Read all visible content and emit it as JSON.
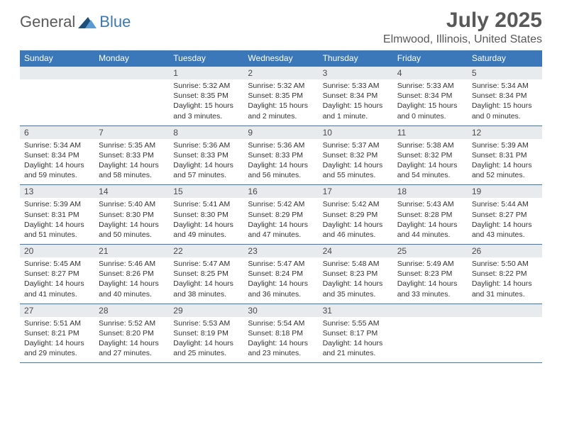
{
  "logo": {
    "part1": "General",
    "part2": "Blue"
  },
  "title": "July 2025",
  "location": "Elmwood, Illinois, United States",
  "colors": {
    "header_bg": "#3a78b9",
    "header_text": "#ffffff",
    "daynum_bg": "#e8ebee",
    "border": "#3a78b9",
    "text": "#333333",
    "title_text": "#595959"
  },
  "weekdays": [
    "Sunday",
    "Monday",
    "Tuesday",
    "Wednesday",
    "Thursday",
    "Friday",
    "Saturday"
  ],
  "weeks": [
    [
      null,
      null,
      {
        "n": "1",
        "sr": "Sunrise: 5:32 AM",
        "ss": "Sunset: 8:35 PM",
        "dl": "Daylight: 15 hours and 3 minutes."
      },
      {
        "n": "2",
        "sr": "Sunrise: 5:32 AM",
        "ss": "Sunset: 8:35 PM",
        "dl": "Daylight: 15 hours and 2 minutes."
      },
      {
        "n": "3",
        "sr": "Sunrise: 5:33 AM",
        "ss": "Sunset: 8:34 PM",
        "dl": "Daylight: 15 hours and 1 minute."
      },
      {
        "n": "4",
        "sr": "Sunrise: 5:33 AM",
        "ss": "Sunset: 8:34 PM",
        "dl": "Daylight: 15 hours and 0 minutes."
      },
      {
        "n": "5",
        "sr": "Sunrise: 5:34 AM",
        "ss": "Sunset: 8:34 PM",
        "dl": "Daylight: 15 hours and 0 minutes."
      }
    ],
    [
      {
        "n": "6",
        "sr": "Sunrise: 5:34 AM",
        "ss": "Sunset: 8:34 PM",
        "dl": "Daylight: 14 hours and 59 minutes."
      },
      {
        "n": "7",
        "sr": "Sunrise: 5:35 AM",
        "ss": "Sunset: 8:33 PM",
        "dl": "Daylight: 14 hours and 58 minutes."
      },
      {
        "n": "8",
        "sr": "Sunrise: 5:36 AM",
        "ss": "Sunset: 8:33 PM",
        "dl": "Daylight: 14 hours and 57 minutes."
      },
      {
        "n": "9",
        "sr": "Sunrise: 5:36 AM",
        "ss": "Sunset: 8:33 PM",
        "dl": "Daylight: 14 hours and 56 minutes."
      },
      {
        "n": "10",
        "sr": "Sunrise: 5:37 AM",
        "ss": "Sunset: 8:32 PM",
        "dl": "Daylight: 14 hours and 55 minutes."
      },
      {
        "n": "11",
        "sr": "Sunrise: 5:38 AM",
        "ss": "Sunset: 8:32 PM",
        "dl": "Daylight: 14 hours and 54 minutes."
      },
      {
        "n": "12",
        "sr": "Sunrise: 5:39 AM",
        "ss": "Sunset: 8:31 PM",
        "dl": "Daylight: 14 hours and 52 minutes."
      }
    ],
    [
      {
        "n": "13",
        "sr": "Sunrise: 5:39 AM",
        "ss": "Sunset: 8:31 PM",
        "dl": "Daylight: 14 hours and 51 minutes."
      },
      {
        "n": "14",
        "sr": "Sunrise: 5:40 AM",
        "ss": "Sunset: 8:30 PM",
        "dl": "Daylight: 14 hours and 50 minutes."
      },
      {
        "n": "15",
        "sr": "Sunrise: 5:41 AM",
        "ss": "Sunset: 8:30 PM",
        "dl": "Daylight: 14 hours and 49 minutes."
      },
      {
        "n": "16",
        "sr": "Sunrise: 5:42 AM",
        "ss": "Sunset: 8:29 PM",
        "dl": "Daylight: 14 hours and 47 minutes."
      },
      {
        "n": "17",
        "sr": "Sunrise: 5:42 AM",
        "ss": "Sunset: 8:29 PM",
        "dl": "Daylight: 14 hours and 46 minutes."
      },
      {
        "n": "18",
        "sr": "Sunrise: 5:43 AM",
        "ss": "Sunset: 8:28 PM",
        "dl": "Daylight: 14 hours and 44 minutes."
      },
      {
        "n": "19",
        "sr": "Sunrise: 5:44 AM",
        "ss": "Sunset: 8:27 PM",
        "dl": "Daylight: 14 hours and 43 minutes."
      }
    ],
    [
      {
        "n": "20",
        "sr": "Sunrise: 5:45 AM",
        "ss": "Sunset: 8:27 PM",
        "dl": "Daylight: 14 hours and 41 minutes."
      },
      {
        "n": "21",
        "sr": "Sunrise: 5:46 AM",
        "ss": "Sunset: 8:26 PM",
        "dl": "Daylight: 14 hours and 40 minutes."
      },
      {
        "n": "22",
        "sr": "Sunrise: 5:47 AM",
        "ss": "Sunset: 8:25 PM",
        "dl": "Daylight: 14 hours and 38 minutes."
      },
      {
        "n": "23",
        "sr": "Sunrise: 5:47 AM",
        "ss": "Sunset: 8:24 PM",
        "dl": "Daylight: 14 hours and 36 minutes."
      },
      {
        "n": "24",
        "sr": "Sunrise: 5:48 AM",
        "ss": "Sunset: 8:23 PM",
        "dl": "Daylight: 14 hours and 35 minutes."
      },
      {
        "n": "25",
        "sr": "Sunrise: 5:49 AM",
        "ss": "Sunset: 8:23 PM",
        "dl": "Daylight: 14 hours and 33 minutes."
      },
      {
        "n": "26",
        "sr": "Sunrise: 5:50 AM",
        "ss": "Sunset: 8:22 PM",
        "dl": "Daylight: 14 hours and 31 minutes."
      }
    ],
    [
      {
        "n": "27",
        "sr": "Sunrise: 5:51 AM",
        "ss": "Sunset: 8:21 PM",
        "dl": "Daylight: 14 hours and 29 minutes."
      },
      {
        "n": "28",
        "sr": "Sunrise: 5:52 AM",
        "ss": "Sunset: 8:20 PM",
        "dl": "Daylight: 14 hours and 27 minutes."
      },
      {
        "n": "29",
        "sr": "Sunrise: 5:53 AM",
        "ss": "Sunset: 8:19 PM",
        "dl": "Daylight: 14 hours and 25 minutes."
      },
      {
        "n": "30",
        "sr": "Sunrise: 5:54 AM",
        "ss": "Sunset: 8:18 PM",
        "dl": "Daylight: 14 hours and 23 minutes."
      },
      {
        "n": "31",
        "sr": "Sunrise: 5:55 AM",
        "ss": "Sunset: 8:17 PM",
        "dl": "Daylight: 14 hours and 21 minutes."
      },
      null,
      null
    ]
  ]
}
